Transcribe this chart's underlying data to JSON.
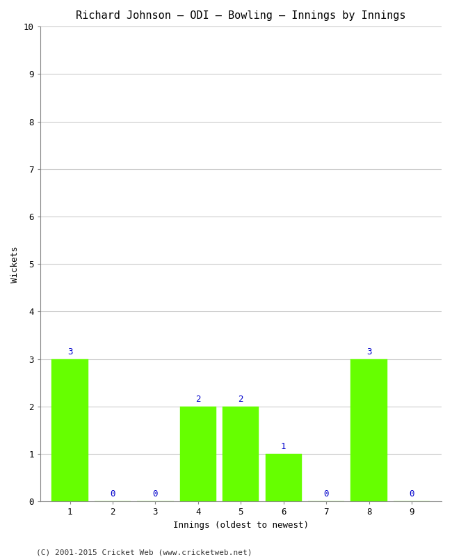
{
  "title": "Richard Johnson – ODI – Bowling – Innings by Innings",
  "xlabel": "Innings (oldest to newest)",
  "ylabel": "Wickets",
  "categories": [
    1,
    2,
    3,
    4,
    5,
    6,
    7,
    8,
    9
  ],
  "values": [
    3,
    0,
    0,
    2,
    2,
    1,
    0,
    3,
    0
  ],
  "bar_color": "#66ff00",
  "bar_edge_color": "#66ff00",
  "label_color": "#0000cc",
  "ylim": [
    0,
    10
  ],
  "yticks": [
    0,
    1,
    2,
    3,
    4,
    5,
    6,
    7,
    8,
    9,
    10
  ],
  "xticks": [
    1,
    2,
    3,
    4,
    5,
    6,
    7,
    8,
    9
  ],
  "title_fontsize": 11,
  "axis_label_fontsize": 9,
  "tick_fontsize": 9,
  "label_fontsize": 9,
  "background_color": "#ffffff",
  "grid_color": "#cccccc",
  "footer": "(C) 2001-2015 Cricket Web (www.cricketweb.net)",
  "footer_fontsize": 8
}
